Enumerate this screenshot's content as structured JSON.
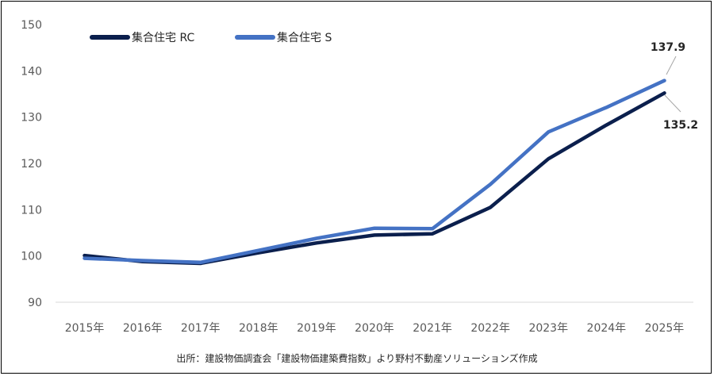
{
  "chart_data": {
    "type": "line",
    "title": "",
    "xlabel": "",
    "ylabel": "",
    "categories": [
      "2015年",
      "2016年",
      "2017年",
      "2018年",
      "2019年",
      "2020年",
      "2021年",
      "2022年",
      "2023年",
      "2024年",
      "2025年"
    ],
    "ylim": [
      90,
      150
    ],
    "yticks": [
      90,
      100,
      110,
      120,
      130,
      140,
      150
    ],
    "grid": false,
    "legend_position": "top-left",
    "series": [
      {
        "name": "集合住宅 RC",
        "color": "#0b1f4d",
        "values": [
          100.1,
          98.8,
          98.4,
          100.7,
          102.8,
          104.5,
          104.8,
          110.5,
          121.0,
          128.3,
          135.2
        ]
      },
      {
        "name": "集合住宅 S",
        "color": "#4472c4",
        "values": [
          99.5,
          99.0,
          98.6,
          101.2,
          103.8,
          106.0,
          105.9,
          115.5,
          126.8,
          132.1,
          137.9
        ]
      }
    ],
    "annotations": [
      {
        "series": 1,
        "index": 10,
        "text": "137.9"
      },
      {
        "series": 0,
        "index": 10,
        "text": "135.2"
      }
    ]
  },
  "source_note": "出所：建設物価調査会「建設物価建築費指数」より野村不動産ソリューションズ作成"
}
